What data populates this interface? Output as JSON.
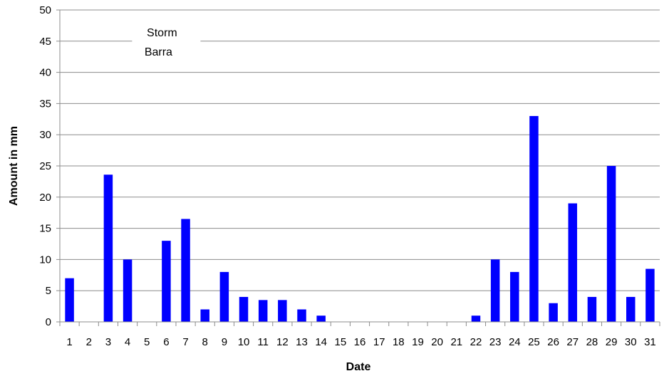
{
  "chart_data": {
    "type": "bar",
    "title": "",
    "xlabel": "Date",
    "ylabel": "Amount in mm",
    "ylim": [
      0,
      50
    ],
    "yticks": [
      0,
      5,
      10,
      15,
      20,
      25,
      30,
      35,
      40,
      45,
      50
    ],
    "grid": true,
    "bar_color": "#0000FF",
    "categories": [
      "1",
      "2",
      "3",
      "4",
      "5",
      "6",
      "7",
      "8",
      "9",
      "10",
      "11",
      "12",
      "13",
      "14",
      "15",
      "16",
      "17",
      "18",
      "19",
      "20",
      "21",
      "22",
      "23",
      "24",
      "25",
      "26",
      "27",
      "28",
      "29",
      "30",
      "31"
    ],
    "values": [
      7,
      0,
      23.6,
      10,
      0,
      13,
      16.5,
      2,
      8,
      4,
      3.5,
      3.5,
      2,
      1,
      0,
      0,
      0,
      0,
      0,
      0,
      0,
      1,
      10,
      8,
      33,
      3,
      19,
      4,
      25,
      4,
      8.5
    ],
    "annotation": {
      "lines": [
        "Storm",
        "Barra"
      ],
      "category": "6",
      "y": 45
    }
  }
}
